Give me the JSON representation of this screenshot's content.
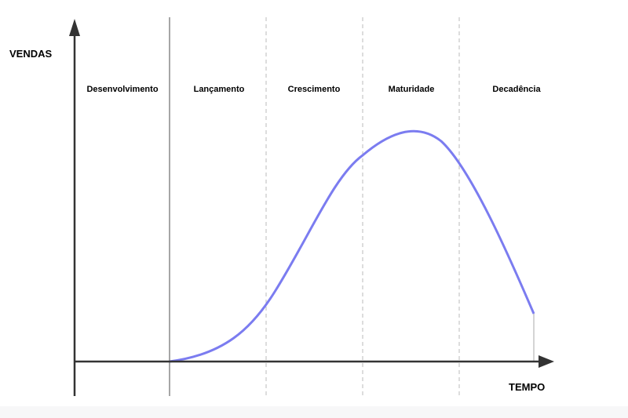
{
  "axes": {
    "y_label": "VENDAS",
    "x_label": "TEMPO"
  },
  "stages": [
    "Desenvolvimento",
    "Lançamento",
    "Crescimento",
    "Maturidade",
    "Decadência"
  ]
}
